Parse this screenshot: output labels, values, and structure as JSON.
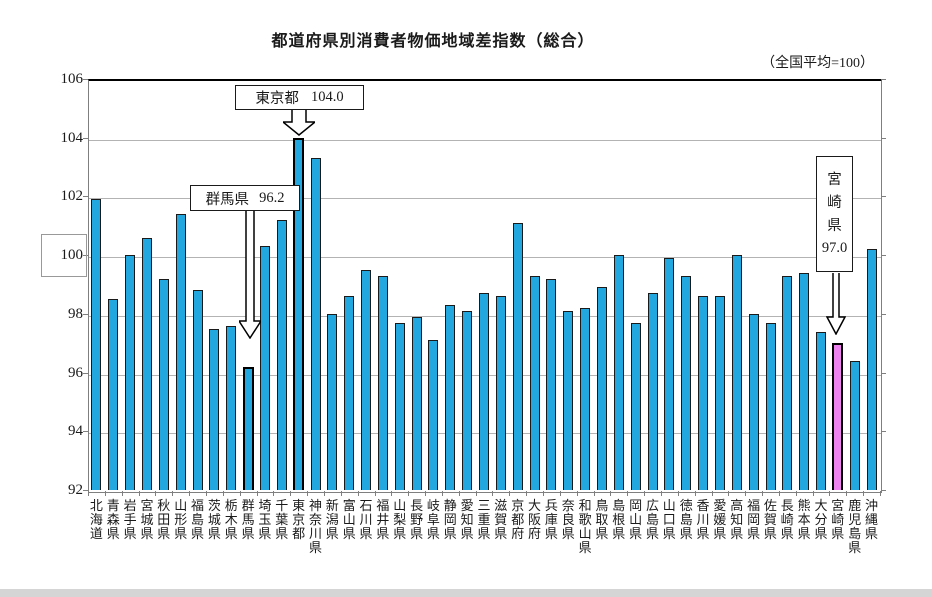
{
  "page": {
    "title": "都道府県別消費者物価地域差指数（総合）",
    "note_right": "（全国平均=100）"
  },
  "chart_data": {
    "type": "bar",
    "title": "都道府県別消費者物価地域差指数（総合）",
    "note": "（全国平均=100）",
    "ylim": [
      92,
      106
    ],
    "yticks": [
      92,
      94,
      96,
      98,
      100,
      102,
      104,
      106
    ],
    "boxed_ytick": 100,
    "grid": true,
    "legend": "none",
    "bar_color": "#22A7DF",
    "bar_outline_color": "#1a1a1a",
    "highlight_outline_color": "#000000",
    "categories": [
      "北海道",
      "青森県",
      "岩手県",
      "宮城県",
      "秋田県",
      "山形県",
      "福島県",
      "茨城県",
      "栃木県",
      "群馬県",
      "埼玉県",
      "千葉県",
      "東京都",
      "神奈川県",
      "新潟県",
      "富山県",
      "石川県",
      "福井県",
      "山梨県",
      "長野県",
      "岐阜県",
      "静岡県",
      "愛知県",
      "三重県",
      "滋賀県",
      "京都府",
      "大阪府",
      "兵庫県",
      "奈良県",
      "和歌山県",
      "鳥取県",
      "島根県",
      "岡山県",
      "広島県",
      "山口県",
      "徳島県",
      "香川県",
      "愛媛県",
      "高知県",
      "福岡県",
      "佐賀県",
      "長崎県",
      "熊本県",
      "大分県",
      "宮崎県",
      "鹿児島県",
      "沖縄県"
    ],
    "values": [
      101.9,
      98.5,
      100.0,
      100.6,
      99.2,
      101.4,
      98.8,
      97.5,
      97.6,
      96.2,
      100.3,
      101.2,
      104.0,
      103.3,
      98.0,
      98.6,
      99.5,
      99.3,
      97.7,
      97.9,
      97.1,
      98.3,
      98.1,
      98.7,
      98.6,
      101.1,
      99.3,
      99.2,
      98.1,
      98.2,
      98.9,
      100.0,
      97.7,
      98.7,
      99.9,
      99.3,
      98.6,
      98.6,
      100.0,
      98.0,
      97.7,
      99.3,
      99.4,
      97.4,
      97.0,
      96.4,
      100.2
    ],
    "highlighted_outline": [
      "群馬県",
      "東京都"
    ],
    "highlighted_fill": [
      {
        "category": "宮崎県",
        "color": "#EE82EE"
      }
    ],
    "annotations": [
      {
        "label": "東京都",
        "value": "104.0",
        "layout": "horizontal"
      },
      {
        "label": "群馬県",
        "value": "96.2",
        "layout": "horizontal"
      },
      {
        "label": "宮崎県",
        "value": "97.0",
        "layout": "vertical"
      }
    ]
  }
}
